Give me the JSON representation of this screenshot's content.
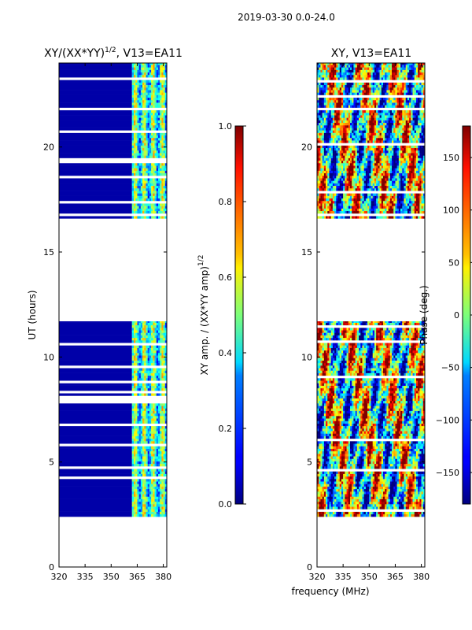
{
  "figure": {
    "suptitle": "2019-03-30 0.0-24.0",
    "xlabel_shared": "frequency (MHz)"
  },
  "chart_data": [
    {
      "type": "heatmap",
      "name": "amplitude-ratio",
      "title_main": "XY/(XX*YY)",
      "title_sup": "1/2",
      "title_suffix": ", V13=EA11",
      "xlabel": "",
      "ylabel": "UT (hours)",
      "xlim": [
        320,
        382
      ],
      "ylim": [
        0,
        24
      ],
      "xticks": [
        320,
        335,
        350,
        365,
        380
      ],
      "yticks": [
        0,
        5,
        10,
        15,
        20
      ],
      "data_time_ranges_hours": [
        [
          2.4,
          11.7
        ],
        [
          16.6,
          24.0
        ]
      ],
      "colorbar": {
        "label_main": "XY amp. / (XX*YY amp)",
        "label_sup": "1/2",
        "range": [
          0.0,
          1.0
        ],
        "ticks": [
          "0.0",
          "0.2",
          "0.4",
          "0.6",
          "0.8",
          "1.0"
        ],
        "tick_values": [
          0.0,
          0.2,
          0.4,
          0.6,
          0.8,
          1.0
        ]
      }
    },
    {
      "type": "heatmap",
      "name": "phase",
      "title": "XY, V13=EA11",
      "xlabel": "frequency (MHz)",
      "ylabel": "",
      "xlim": [
        320,
        382
      ],
      "ylim": [
        0,
        24
      ],
      "xticks": [
        320,
        335,
        350,
        365,
        380
      ],
      "yticks": [
        0,
        5,
        10,
        15,
        20
      ],
      "data_time_ranges_hours": [
        [
          2.4,
          11.7
        ],
        [
          16.6,
          24.0
        ]
      ],
      "colorbar": {
        "label": "Phase (deg.)",
        "range": [
          -180,
          180
        ],
        "ticks": [
          "−150",
          "−100",
          "−50",
          "0",
          "50",
          "100",
          "150"
        ],
        "tick_values": [
          -150,
          -100,
          -50,
          0,
          50,
          100,
          150
        ]
      }
    }
  ]
}
